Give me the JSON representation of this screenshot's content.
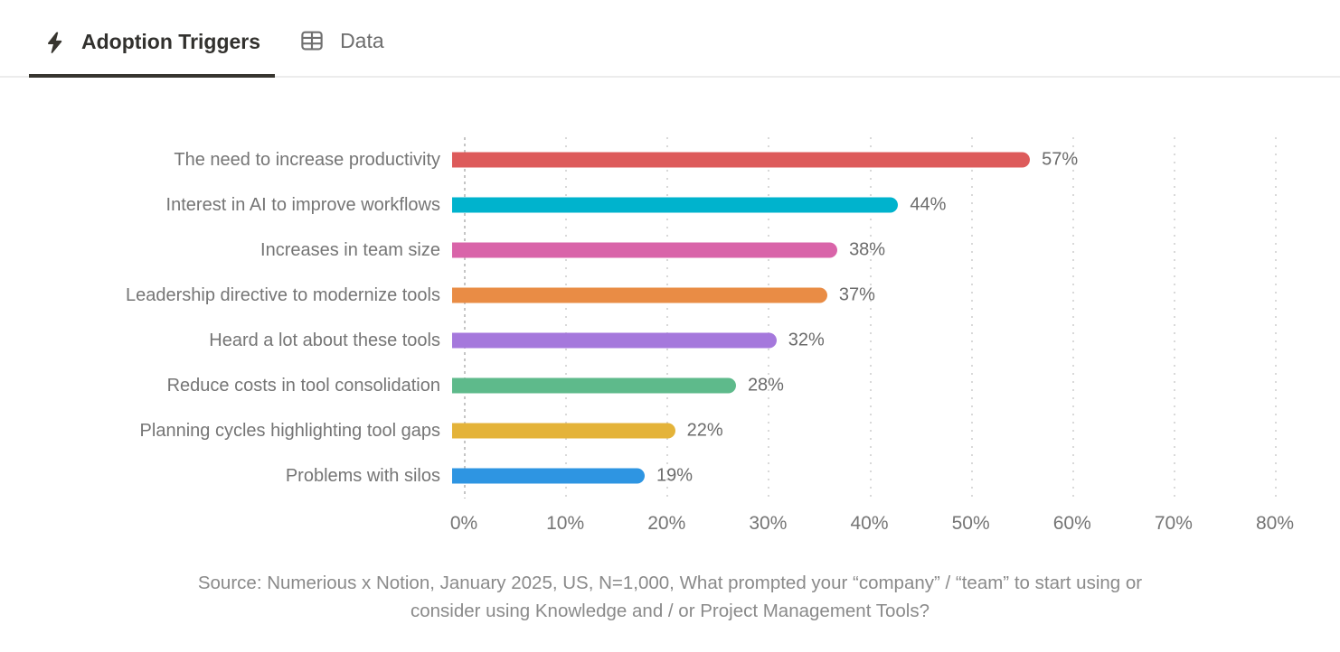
{
  "tabs": [
    {
      "label": "Adoption Triggers",
      "icon": "lightning-bolt-icon",
      "active": true
    },
    {
      "label": "Data",
      "icon": "table-icon",
      "active": false
    }
  ],
  "chart_data": {
    "type": "bar",
    "orientation": "horizontal",
    "title": "Adoption Triggers",
    "categories": [
      "The need to increase productivity",
      "Interest in AI to improve workflows",
      "Increases in team size",
      "Leadership directive to modernize tools",
      "Heard a lot about these tools",
      "Reduce costs in tool consolidation",
      "Planning cycles highlighting tool gaps",
      "Problems with silos"
    ],
    "values": [
      57,
      44,
      38,
      37,
      32,
      28,
      22,
      19
    ],
    "value_labels": [
      "57%",
      "44%",
      "38%",
      "37%",
      "32%",
      "28%",
      "22%",
      "19%"
    ],
    "bar_colors": [
      "#dd5b5b",
      "#00b3cd",
      "#d964a9",
      "#e98c45",
      "#a578dc",
      "#5eba8b",
      "#e4b339",
      "#2e95e2"
    ],
    "xlim": [
      0,
      80
    ],
    "x_ticks": [
      "0%",
      "10%",
      "20%",
      "30%",
      "40%",
      "50%",
      "60%",
      "70%",
      "80%"
    ],
    "grid": "vertical-dotted",
    "legend": "none",
    "source_lines": [
      "Source: Numerious x Notion, January 2025, US, N=1,000, What prompted your “company” / “team” to start using or",
      "consider using Knowledge and / or Project Management Tools?"
    ]
  },
  "colors": {
    "active_tab_text": "#32312e",
    "inactive_tab_text": "#6d6d6d",
    "tab_underline": "#37352f",
    "tabbar_border": "#ececec",
    "gridline": "#d9d9d9",
    "label_text": "#757575",
    "value_text": "#6b6b6b",
    "source_text": "#8a8a8a"
  }
}
